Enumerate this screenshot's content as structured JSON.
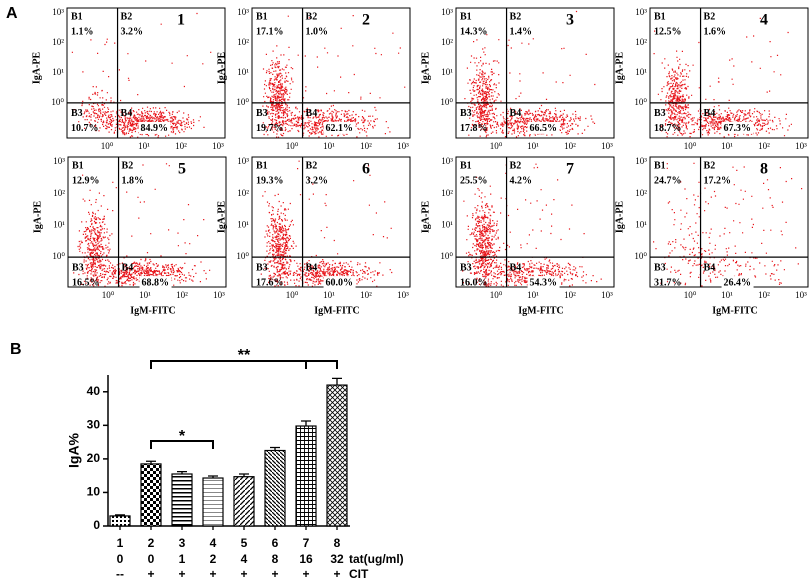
{
  "panel_a": {
    "label": "A",
    "y_axis_label": "IgA-PE",
    "x_axis_label": "IgM-FITC",
    "y_tick_labels": [
      "10³",
      "10²",
      "10¹",
      "10⁰"
    ],
    "x_tick_labels": [
      "10⁰",
      "10¹",
      "10²",
      "10³"
    ],
    "panels": [
      {
        "number": "1",
        "quadrants": [
          {
            "name": "B1",
            "percent": "1.1%"
          },
          {
            "name": "B2",
            "percent": "3.2%"
          },
          {
            "name": "B3",
            "percent": "10.7%"
          },
          {
            "name": "B4",
            "percent": "84.9%"
          }
        ]
      },
      {
        "number": "2",
        "quadrants": [
          {
            "name": "B1",
            "percent": "17.1%"
          },
          {
            "name": "B2",
            "percent": "1.0%"
          },
          {
            "name": "B3",
            "percent": "19.7%"
          },
          {
            "name": "B4",
            "percent": "62.1%"
          }
        ]
      },
      {
        "number": "3",
        "quadrants": [
          {
            "name": "B1",
            "percent": "14.3%"
          },
          {
            "name": "B2",
            "percent": "1.4%"
          },
          {
            "name": "B3",
            "percent": "17.8%"
          },
          {
            "name": "B4",
            "percent": "66.5%"
          }
        ]
      },
      {
        "number": "4",
        "quadrants": [
          {
            "name": "B1",
            "percent": "12.5%"
          },
          {
            "name": "B2",
            "percent": "1.6%"
          },
          {
            "name": "B3",
            "percent": "18.7%"
          },
          {
            "name": "B4",
            "percent": "67.3%"
          }
        ]
      },
      {
        "number": "5",
        "quadrants": [
          {
            "name": "B1",
            "percent": "12.9%"
          },
          {
            "name": "B2",
            "percent": "1.8%"
          },
          {
            "name": "B3",
            "percent": "16.5%"
          },
          {
            "name": "B4",
            "percent": "68.8%"
          }
        ]
      },
      {
        "number": "6",
        "quadrants": [
          {
            "name": "B1",
            "percent": "19.3%"
          },
          {
            "name": "B2",
            "percent": "3.2%"
          },
          {
            "name": "B3",
            "percent": "17.6%"
          },
          {
            "name": "B4",
            "percent": "60.0%"
          }
        ]
      },
      {
        "number": "7",
        "quadrants": [
          {
            "name": "B1",
            "percent": "25.5%"
          },
          {
            "name": "B2",
            "percent": "4.2%"
          },
          {
            "name": "B3",
            "percent": "16.0%"
          },
          {
            "name": "B4",
            "percent": "54.3%"
          }
        ]
      },
      {
        "number": "8",
        "quadrants": [
          {
            "name": "B1",
            "percent": "24.7%"
          },
          {
            "name": "B2",
            "percent": "17.2%"
          },
          {
            "name": "B3",
            "percent": "31.7%"
          },
          {
            "name": "B4",
            "percent": "26.4%"
          }
        ]
      }
    ]
  },
  "chart_data": {
    "type": "bar",
    "panel_label": "B",
    "y_label": "IgA%",
    "categories": [
      "1",
      "2",
      "3",
      "4",
      "5",
      "6",
      "7",
      "8"
    ],
    "values": [
      3,
      18.5,
      15.5,
      14.3,
      14.7,
      22.5,
      29.8,
      42
    ],
    "errors": [
      0.3,
      0.8,
      0.7,
      0.6,
      0.8,
      0.9,
      1.5,
      2
    ],
    "color": "#000000",
    "ylim": [
      0,
      45
    ],
    "yticks": [
      0,
      10,
      20,
      30,
      40
    ],
    "tat_row": {
      "values": [
        "0",
        "0",
        "1",
        "2",
        "4",
        "8",
        "16",
        "32"
      ],
      "label": "tat(ug/ml)"
    },
    "cit_row": {
      "values": [
        "--",
        "+",
        "+",
        "+",
        "+",
        "+",
        "+",
        "+"
      ],
      "label": "CIT"
    },
    "annotations": [
      {
        "text": "*"
      },
      {
        "text": "**"
      }
    ]
  }
}
